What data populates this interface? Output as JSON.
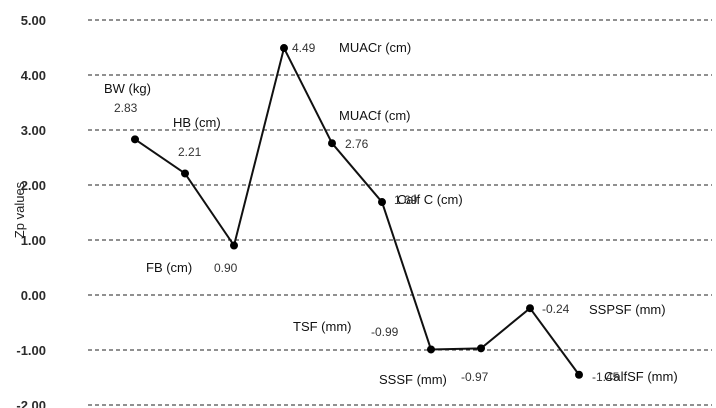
{
  "chart_data": {
    "type": "line",
    "title": "",
    "xlabel": "",
    "ylabel": "Zp values",
    "ylim": [
      -2.0,
      5.0
    ],
    "yticks": [
      "5.00",
      "4.00",
      "3.00",
      "2.00",
      "1.00",
      "0.00",
      "-1.00",
      "-2.00"
    ],
    "grid": true,
    "gridStyle": "dashed",
    "lineColor": "#111111",
    "points": [
      {
        "category": "BW (kg)",
        "value": 2.83,
        "label": "2.83"
      },
      {
        "category": "HB (cm)",
        "value": 2.21,
        "label": "2.21"
      },
      {
        "category": "FB (cm)",
        "value": 0.9,
        "label": "0.90"
      },
      {
        "category": "MUACr (cm)",
        "value": 4.49,
        "label": "4.49"
      },
      {
        "category": "MUACf (cm)",
        "value": 2.76,
        "label": "2.76"
      },
      {
        "category": "Calf C (cm)",
        "value": 1.69,
        "label": "1.69"
      },
      {
        "category": "TSF (mm)",
        "value": -0.99,
        "label": "-0.99"
      },
      {
        "category": "SSSF (mm)",
        "value": -0.97,
        "label": "-0.97"
      },
      {
        "category": "SSPSF (mm)",
        "value": -0.24,
        "label": "-0.24"
      },
      {
        "category": "CalfSF (mm)",
        "value": -1.45,
        "label": "-1.45"
      }
    ]
  }
}
